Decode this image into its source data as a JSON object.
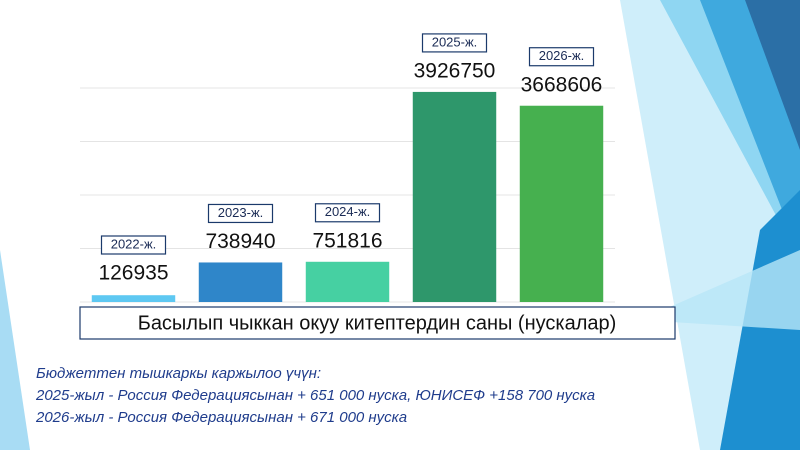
{
  "chart_data": {
    "type": "bar",
    "title": "Басылып чыккан окуу китептердин саны (нускалар)",
    "categories": [
      "2022-ж.",
      "2023-ж.",
      "2024-ж.",
      "2025-ж.",
      "2026-ж."
    ],
    "values": [
      126935,
      738940,
      751816,
      3926750,
      3668606
    ],
    "colors": [
      "#5ec8f2",
      "#2f86c9",
      "#46d0a2",
      "#2e976b",
      "#46b04f"
    ],
    "ylim": [
      0,
      4000000
    ],
    "yticks": [
      0,
      1000000,
      2000000,
      3000000,
      4000000
    ],
    "grid": true,
    "notes": [
      "Бюджеттен тышкаркы каржылоо үчүн:",
      "2025-жыл - Россия Федерациясынан + 651 000 нуска, ЮНИСЕФ +158 700 нуска",
      "2026-жыл - Россия Федерациясынан + 671 000 нуска"
    ]
  }
}
